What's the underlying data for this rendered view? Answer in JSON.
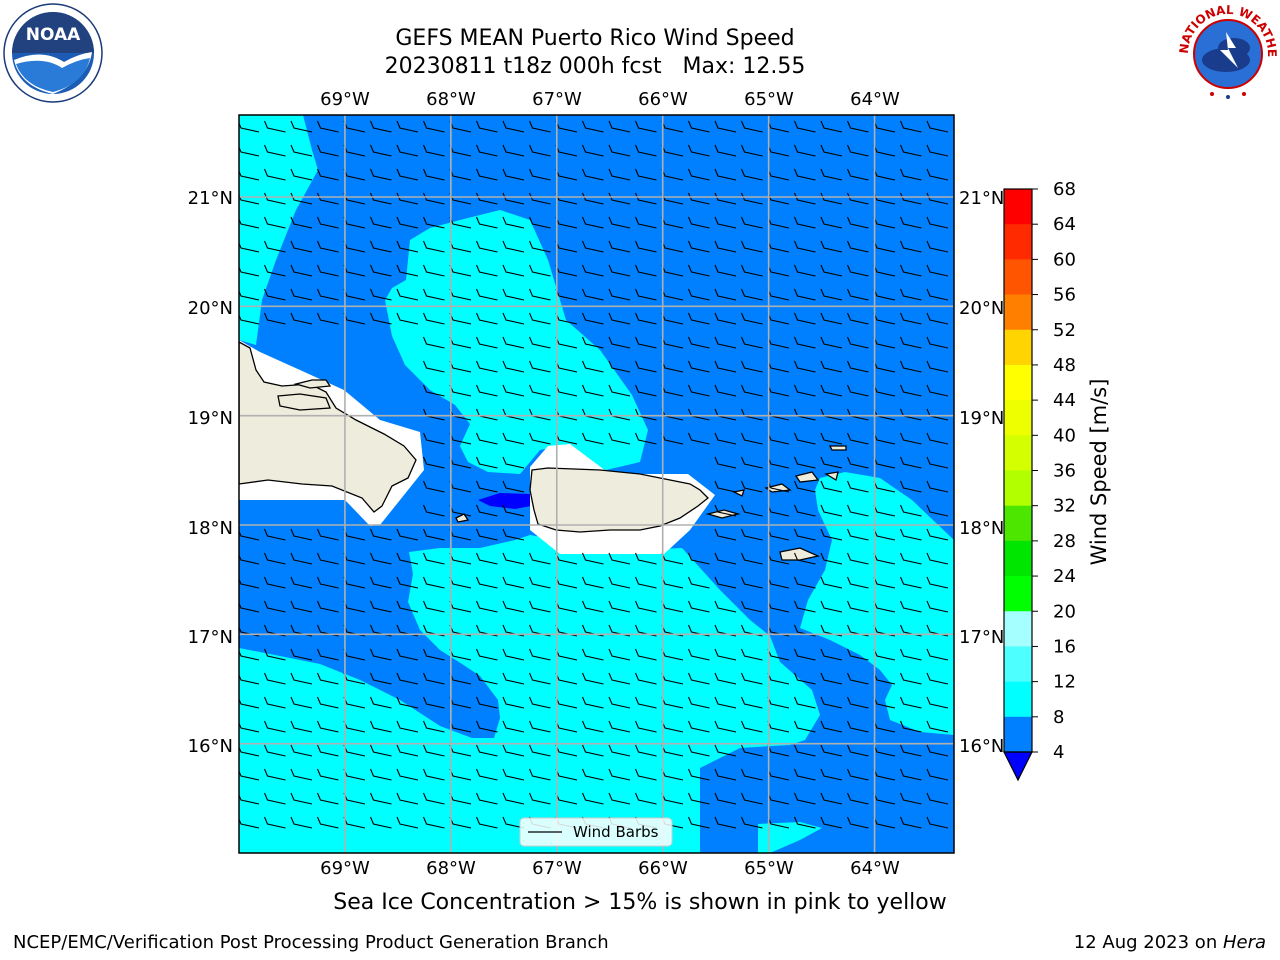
{
  "header": {
    "title_line1": "GEFS MEAN Puerto Rico Wind Speed",
    "title_line2": "20230811 t18z 000h fcst   Max: 12.55"
  },
  "logos": {
    "left": "noaa-logo",
    "right": "national-weather-service-logo",
    "left_text": "NOAA",
    "right_text": "NATIONAL WEATHER SERVICE"
  },
  "map": {
    "lon_range": [
      -70.0,
      -63.25
    ],
    "lat_range": [
      15.0,
      21.75
    ],
    "lon_labels": [
      "69°W",
      "68°W",
      "67°W",
      "66°W",
      "65°W",
      "64°W"
    ],
    "lat_labels": [
      "21°N",
      "20°N",
      "19°N",
      "18°N",
      "17°N",
      "16°N"
    ],
    "grid": true,
    "land_color": "#eeecdc",
    "colors": {
      "below_4": "#0000ff",
      "4_8": "#0080ff",
      "8_12": "#00ffff"
    },
    "legend": {
      "label": "Wind Barbs",
      "placement": "bottom-center"
    }
  },
  "colorbar": {
    "label": "Wind Speed [m/s]",
    "ticks": [
      "68",
      "64",
      "60",
      "56",
      "52",
      "48",
      "44",
      "40",
      "36",
      "32",
      "28",
      "24",
      "20",
      "16",
      "12",
      "8",
      "4"
    ],
    "bands": [
      "#ff0000",
      "#ff2a00",
      "#ff5500",
      "#ff8000",
      "#ffaa00",
      "#ffd400",
      "#ffff00",
      "#eeff00",
      "#d4ff00",
      "#b2ff00",
      "#4ce600",
      "#00e600",
      "#00ff00",
      "#4cff80",
      "#a6ffff",
      "#4dffff",
      "#00ffff",
      "#0080ff"
    ],
    "underflow_color": "#0000ff"
  },
  "caption": "Sea Ice Concentration > 15% is shown in pink to yellow",
  "footer": {
    "left": "NCEP/EMC/Verification Post Processing Product Generation Branch",
    "date": "12 Aug 2023 on ",
    "host": "Hera"
  }
}
